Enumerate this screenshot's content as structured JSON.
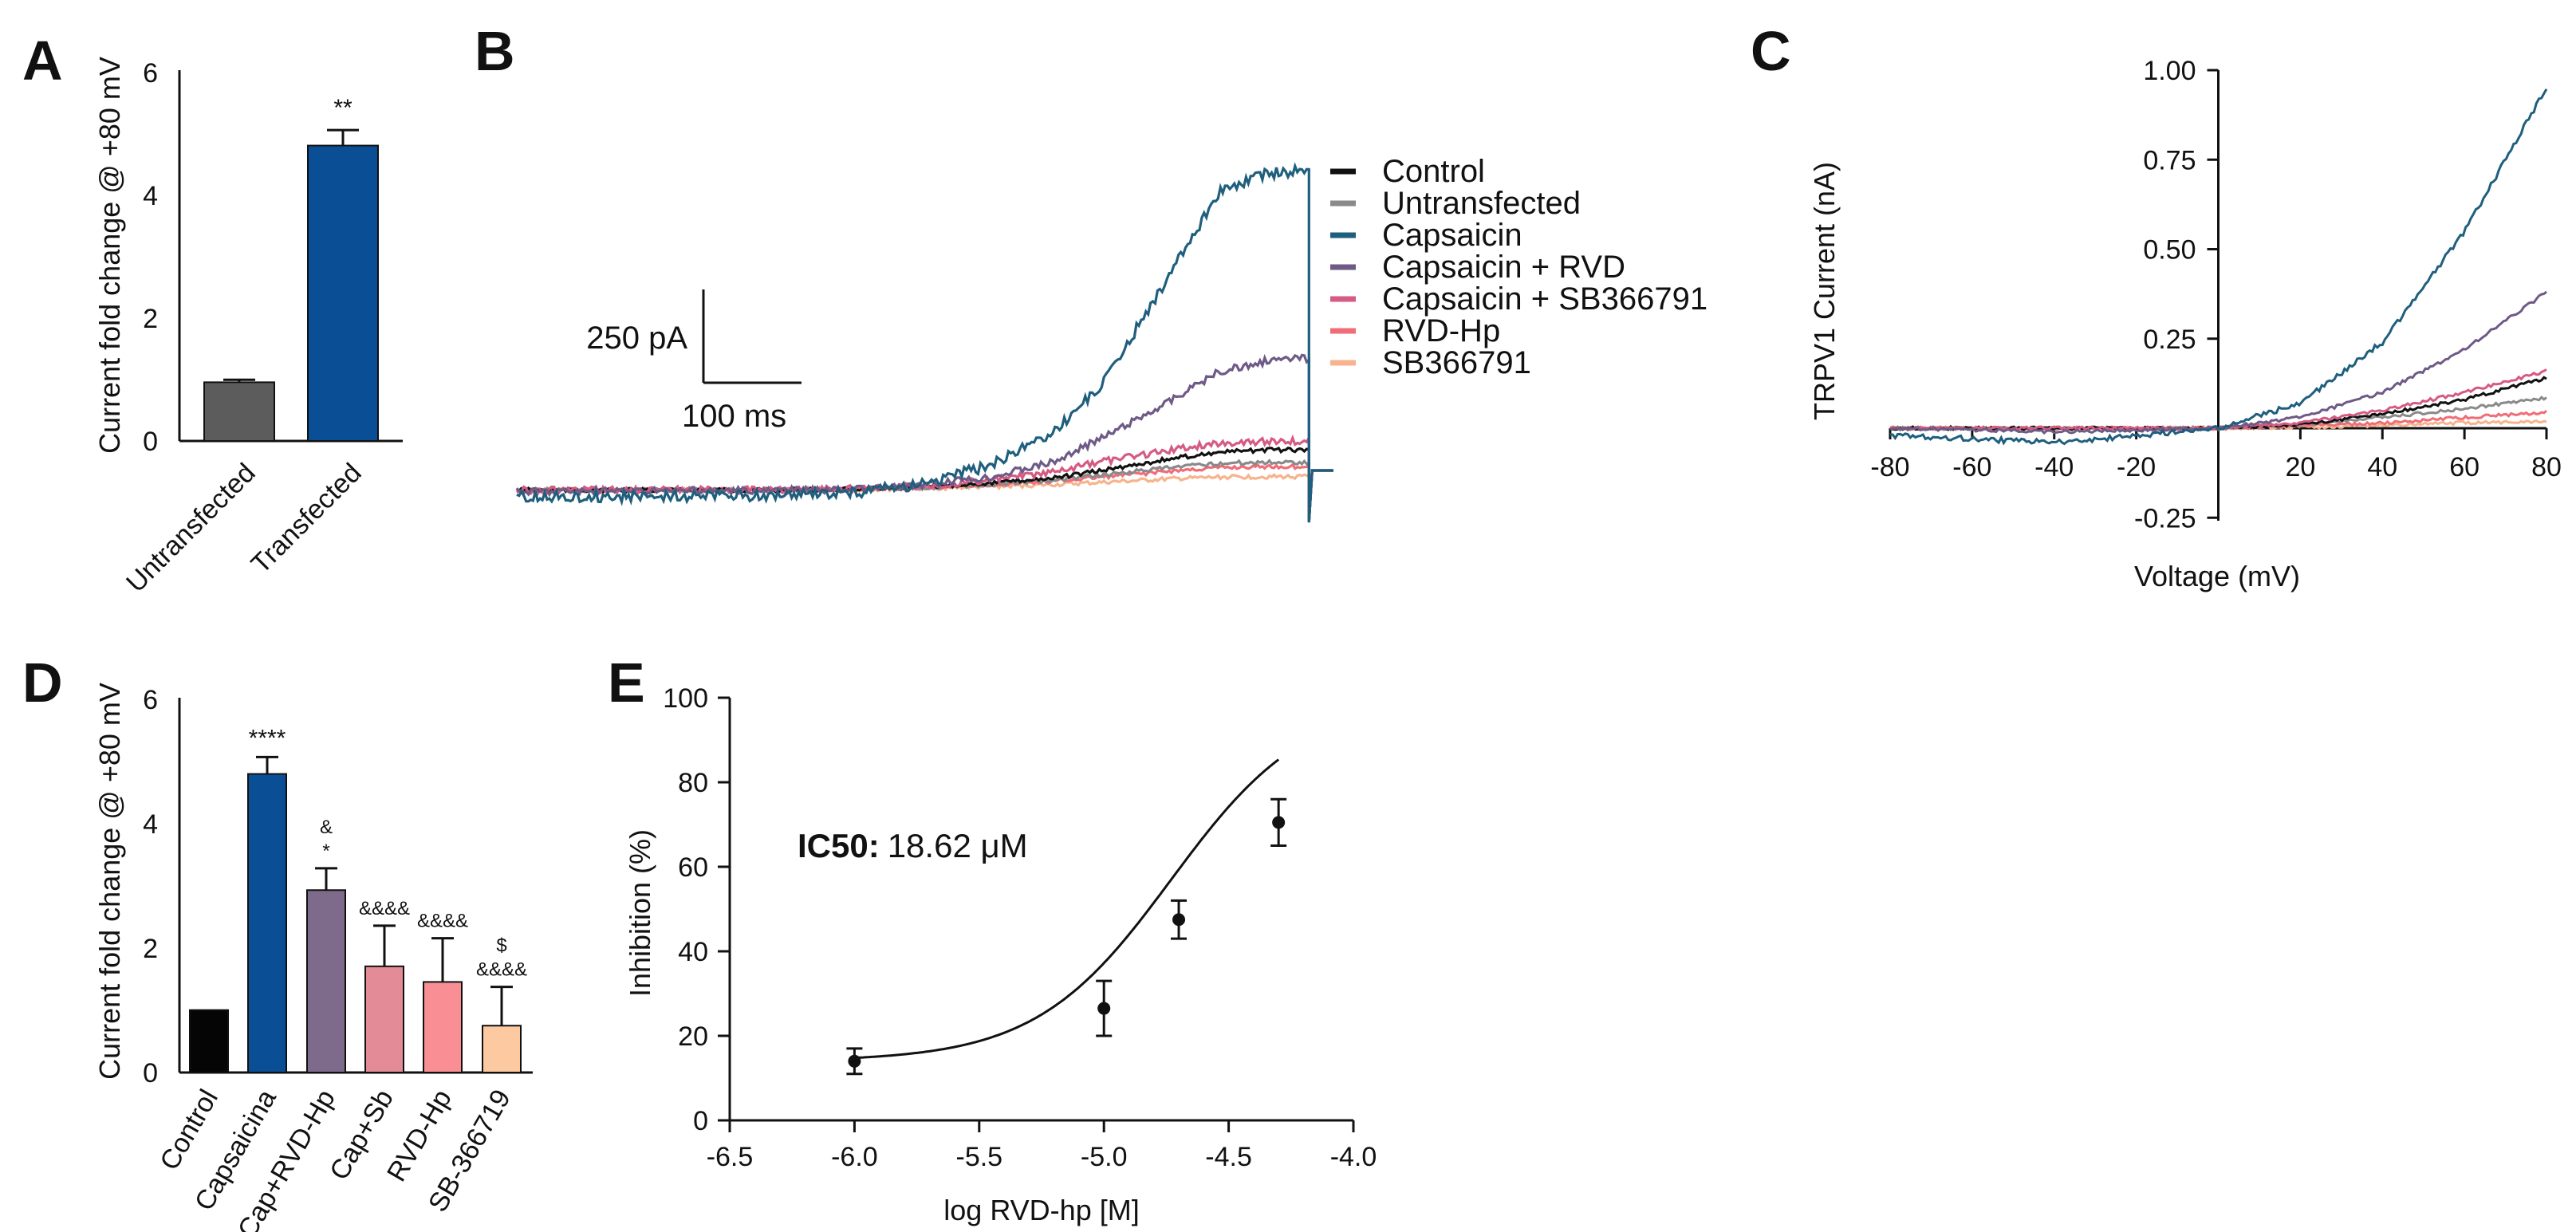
{
  "panels": {
    "A": "A",
    "B": "B",
    "C": "C",
    "D": "D",
    "E": "E"
  },
  "chart_data": [
    {
      "id": "A",
      "type": "bar",
      "ylabel": "Current fold change @ +80 mV",
      "ylim": [
        0,
        6
      ],
      "yticks": [
        "0",
        "2",
        "4",
        "6"
      ],
      "categories": [
        "Untransfected",
        "Transfected"
      ],
      "values": [
        0.95,
        4.78
      ],
      "errors": [
        0.04,
        0.25
      ],
      "colors": [
        "#5c5c5c",
        "#0a4f96"
      ],
      "annotations": [
        "",
        "**"
      ]
    },
    {
      "id": "B",
      "type": "line",
      "title": "",
      "scalebar": {
        "current": "250 pA",
        "time": "100 ms"
      },
      "legend": [
        {
          "name": "Control",
          "color": "#111111"
        },
        {
          "name": "Untransfected",
          "color": "#8a8a8a"
        },
        {
          "name": "Capsaicin",
          "color": "#1f5f7e"
        },
        {
          "name": "Capsaicin + RVD",
          "color": "#6e5a86"
        },
        {
          "name": "Capsaicin + SB366791",
          "color": "#d65b82"
        },
        {
          "name": "RVD-Hp",
          "color": "#f06d78"
        },
        {
          "name": "SB366791",
          "color": "#f7b38d"
        }
      ],
      "x": [
        0,
        0.3,
        0.42,
        0.5,
        0.58,
        0.66,
        0.72,
        0.8,
        0.86,
        0.92,
        0.97
      ],
      "series": [
        {
          "name": "Control",
          "values": [
            -70,
            -70,
            -65,
            -55,
            -38,
            -15,
            20,
            70,
            100,
            110,
            110
          ]
        },
        {
          "name": "Untransfected",
          "values": [
            -70,
            -70,
            -66,
            -58,
            -45,
            -25,
            0,
            30,
            50,
            55,
            55
          ]
        },
        {
          "name": "Capsaicin",
          "values": [
            -100,
            -95,
            -80,
            -40,
            40,
            200,
            420,
            900,
            1260,
            1350,
            1360
          ]
        },
        {
          "name": "Capsaicin + RVD",
          "values": [
            -75,
            -72,
            -65,
            -50,
            -10,
            60,
            170,
            330,
            460,
            510,
            520
          ]
        },
        {
          "name": "Capsaicin + SB366791",
          "values": [
            -70,
            -70,
            -62,
            -50,
            -25,
            10,
            60,
            110,
            140,
            150,
            150
          ]
        },
        {
          "name": "RVD-Hp",
          "values": [
            -70,
            -70,
            -66,
            -58,
            -45,
            -30,
            -10,
            15,
            30,
            35,
            35
          ]
        },
        {
          "name": "SB366791",
          "values": [
            -70,
            -70,
            -68,
            -62,
            -55,
            -45,
            -35,
            -20,
            -12,
            -10,
            -10
          ]
        }
      ]
    },
    {
      "id": "C",
      "type": "line",
      "xlabel": "Voltage (mV)",
      "ylabel": "TRPV1 Current (nA)",
      "xlim": [
        -80,
        80
      ],
      "ylim": [
        -0.25,
        1.0
      ],
      "xticks": [
        "-80",
        "-60",
        "-40",
        "-20",
        "20",
        "40",
        "60",
        "80"
      ],
      "yticks": [
        "-0.25",
        "0.25",
        "0.50",
        "0.75",
        "1.00"
      ],
      "x": [
        -80,
        -60,
        -40,
        -20,
        0,
        20,
        40,
        60,
        80
      ],
      "series": [
        {
          "name": "Capsaicin",
          "color": "#1f5f7e",
          "values": [
            -0.02,
            -0.03,
            -0.04,
            -0.02,
            0.0,
            0.07,
            0.24,
            0.55,
            0.95
          ]
        },
        {
          "name": "Capsaicin + RVD",
          "color": "#6e5a86",
          "values": [
            0.0,
            -0.005,
            -0.01,
            -0.005,
            0.0,
            0.03,
            0.1,
            0.22,
            0.38
          ]
        },
        {
          "name": "Capsaicin + SB366791",
          "color": "#d65b82",
          "values": [
            0.0,
            0.0,
            0.0,
            0.0,
            0.0,
            0.015,
            0.05,
            0.1,
            0.16
          ]
        },
        {
          "name": "Control",
          "color": "#111111",
          "values": [
            0.0,
            0.0,
            0.0,
            0.0,
            0.0,
            0.01,
            0.04,
            0.08,
            0.14
          ]
        },
        {
          "name": "Untransfected",
          "color": "#8a8a8a",
          "values": [
            0.0,
            0.0,
            0.0,
            0.0,
            0.0,
            0.01,
            0.03,
            0.055,
            0.085
          ]
        },
        {
          "name": "RVD-Hp",
          "color": "#f06d78",
          "values": [
            0.0,
            0.0,
            0.0,
            0.0,
            0.0,
            0.005,
            0.015,
            0.03,
            0.045
          ]
        },
        {
          "name": "SB366791",
          "color": "#f7b38d",
          "values": [
            0.0,
            0.0,
            0.0,
            0.0,
            0.0,
            0.003,
            0.008,
            0.015,
            0.02
          ]
        }
      ]
    },
    {
      "id": "D",
      "type": "bar",
      "ylabel": "Current fold change @ +80 mV",
      "ylim": [
        0,
        6
      ],
      "yticks": [
        "0",
        "2",
        "4",
        "6"
      ],
      "categories": [
        "Control",
        "Capsaicina",
        "Cap+RVD-Hp",
        "Cap+Sb",
        "RVD-Hp",
        "SB-366719"
      ],
      "values": [
        1.0,
        4.78,
        2.92,
        1.7,
        1.45,
        0.75
      ],
      "errors": [
        0.0,
        0.27,
        0.35,
        0.65,
        0.7,
        0.62
      ],
      "colors": [
        "#050505",
        "#0a4f96",
        "#7e6b8c",
        "#e38c97",
        "#fa8e95",
        "#fdc9a0"
      ],
      "annotations": [
        [],
        [
          "****"
        ],
        [
          "&",
          "*"
        ],
        [
          "&&&&"
        ],
        [
          "&&&&"
        ],
        [
          "$",
          "&&&&"
        ]
      ]
    },
    {
      "id": "E",
      "type": "scatter",
      "xlabel": "log RVD-hp [M]",
      "ylabel": "Inhibition (%)",
      "xlim": [
        -6.5,
        -4.0
      ],
      "ylim": [
        0,
        100
      ],
      "xticks": [
        "-6.5",
        "-6.0",
        "-5.5",
        "-5.0",
        "-4.5",
        "-4.0"
      ],
      "yticks": [
        "0",
        "20",
        "40",
        "60",
        "80",
        "100"
      ],
      "points": {
        "x": [
          -6.0,
          -5.0,
          -4.7,
          -4.3
        ],
        "y": [
          14,
          26.5,
          47.5,
          70.5
        ],
        "err": [
          3,
          6.5,
          4.5,
          5.5
        ]
      },
      "fit": {
        "bottom": 14,
        "top": 100,
        "log_ic50": -4.73,
        "hill": 1.6
      },
      "ic50_label": "IC50:",
      "ic50_value": "18.62 μM"
    }
  ]
}
